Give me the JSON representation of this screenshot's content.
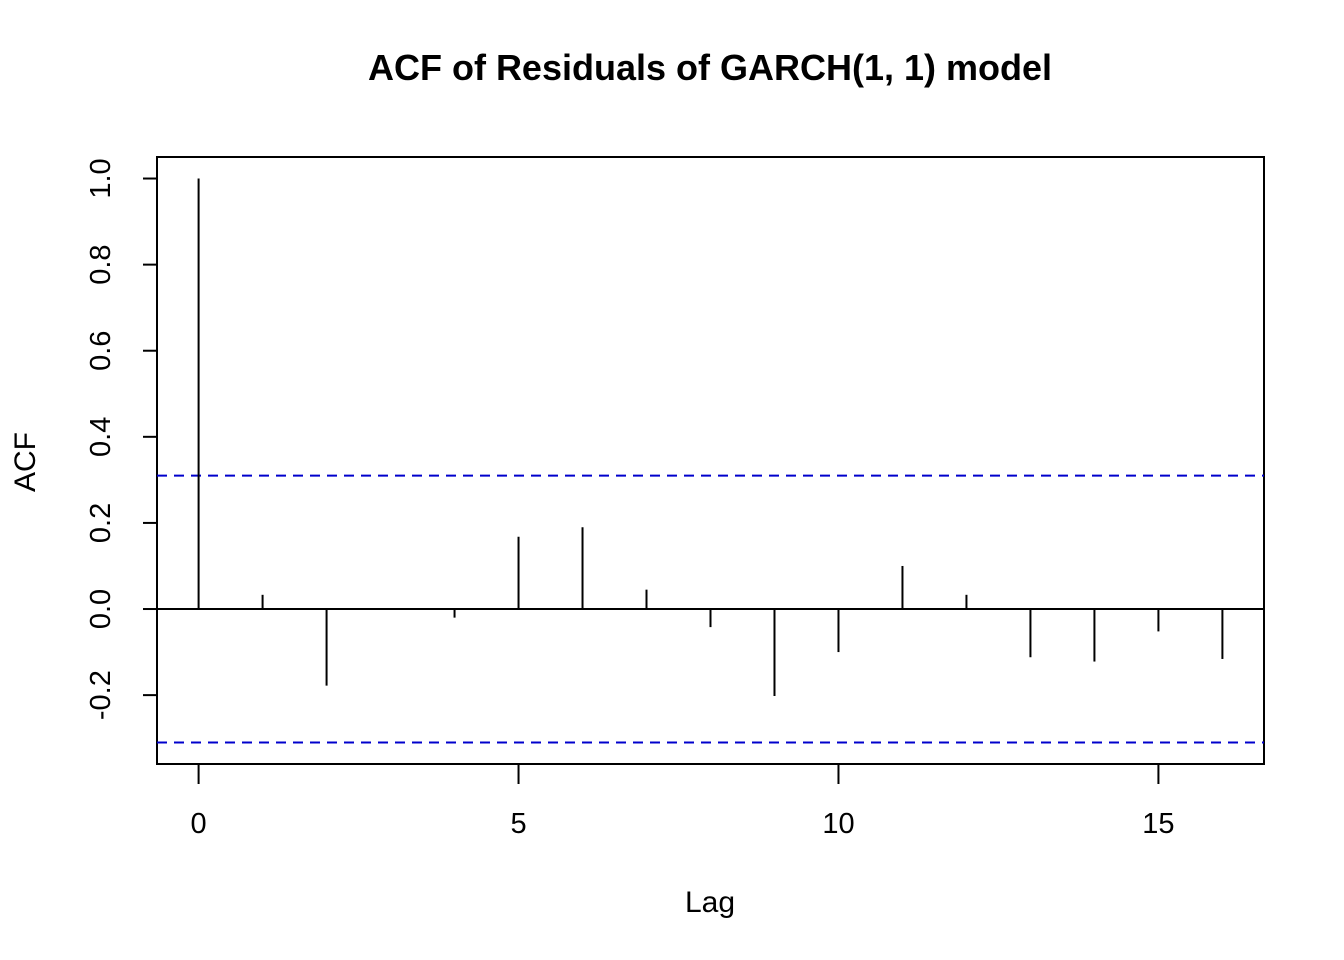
{
  "chart_data": {
    "type": "bar",
    "title": "ACF of Residuals of GARCH(1, 1) model",
    "xlabel": "Lag",
    "ylabel": "ACF",
    "x": [
      0,
      1,
      2,
      3,
      4,
      5,
      6,
      7,
      8,
      9,
      10,
      11,
      12,
      13,
      14,
      15,
      16
    ],
    "values": [
      1.0,
      0.033,
      -0.178,
      0.0,
      -0.02,
      0.168,
      0.19,
      0.045,
      -0.042,
      -0.202,
      -0.1,
      0.1,
      0.033,
      -0.112,
      -0.122,
      -0.052,
      -0.116
    ],
    "xlim": [
      -0.65,
      16.65
    ],
    "ylim": [
      -0.36,
      1.05
    ],
    "xticks": [
      0,
      5,
      10,
      15
    ],
    "xtick_labels": [
      "0",
      "5",
      "10",
      "15"
    ],
    "yticks": [
      -0.2,
      0.0,
      0.2,
      0.4,
      0.6,
      0.8,
      1.0
    ],
    "ytick_labels": [
      "-0.2",
      "0.0",
      "0.2",
      "0.4",
      "0.6",
      "0.8",
      "1.0"
    ],
    "confidence_bound": 0.31,
    "confidence_color": "#0000cc",
    "grid": false,
    "legend": "none"
  }
}
